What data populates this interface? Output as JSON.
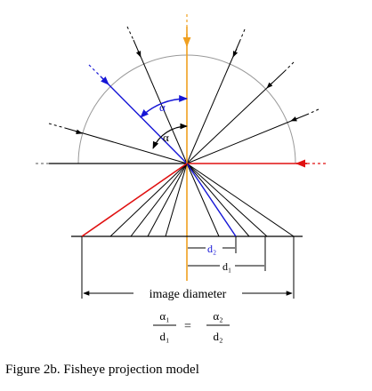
{
  "diagram": {
    "alpha_blue": "α",
    "alpha_black": "α",
    "d2_label": "d₂",
    "d1_label": "d₁",
    "image_diameter_label": "image diameter",
    "formula": {
      "numerator_left": "α₁",
      "denominator_left": "d₁",
      "equals": "=",
      "numerator_right": "α₂",
      "denominator_right": "d₂"
    }
  },
  "caption": "Figure 2b.  Fisheye projection model",
  "colors": {
    "blue_ray": "#1515d6",
    "red_ray": "#e01010",
    "orange_axis": "#f0a020",
    "arc": "#999999",
    "ink": "#000000"
  }
}
